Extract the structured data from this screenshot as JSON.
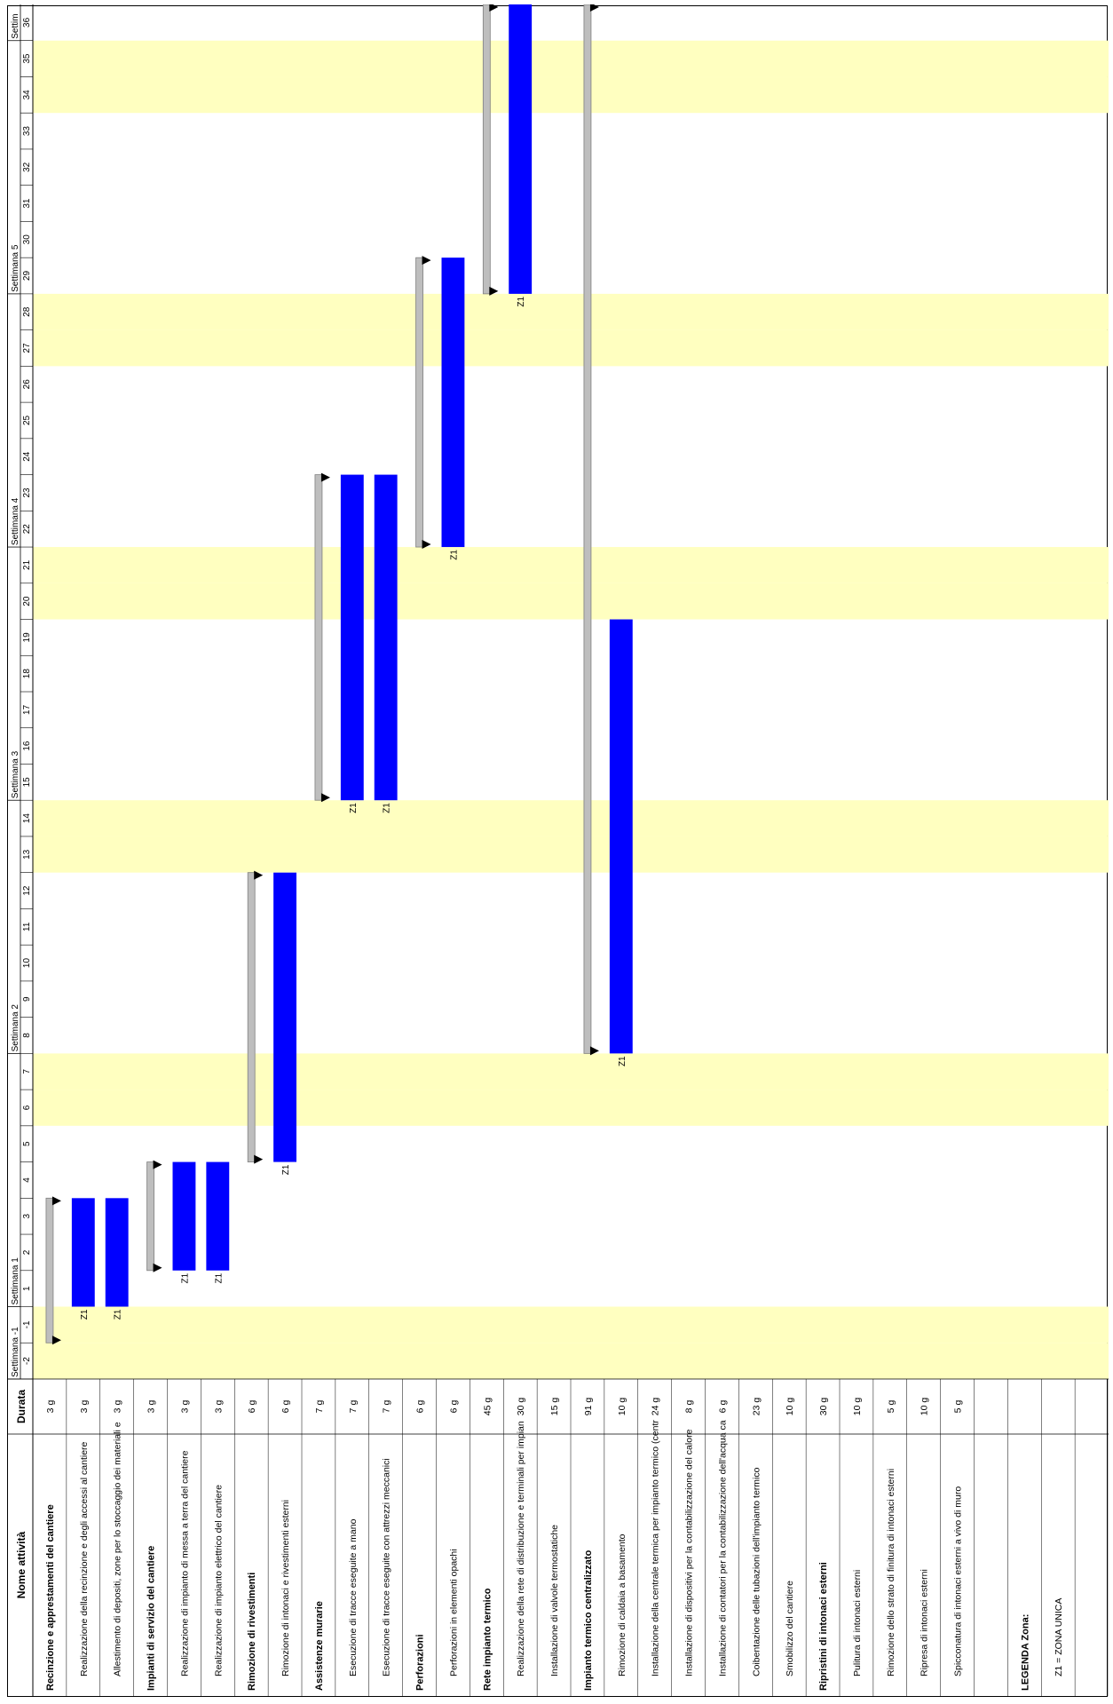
{
  "header": {
    "name_col": "Nome attività",
    "duration_col": "Durata",
    "weeks": [
      {
        "label": "Settimana -1",
        "start_day": -2
      },
      {
        "label": "Settimana 1",
        "start_day": 1
      },
      {
        "label": "Settimana 2",
        "start_day": 8
      },
      {
        "label": "Settimana 3",
        "start_day": 15
      },
      {
        "label": "Settimana 4",
        "start_day": 22
      },
      {
        "label": "Settimana 5",
        "start_day": 29
      },
      {
        "label": "Settim",
        "start_day": 36
      }
    ],
    "days": [
      "-2",
      "-1",
      "1",
      "2",
      "3",
      "4",
      "5",
      "6",
      "7",
      "8",
      "9",
      "10",
      "11",
      "12",
      "13",
      "14",
      "15",
      "16",
      "17",
      "18",
      "19",
      "20",
      "21",
      "22",
      "23",
      "24",
      "25",
      "26",
      "27",
      "28",
      "29",
      "30",
      "31",
      "32",
      "33",
      "34",
      "35",
      "36"
    ]
  },
  "weekend_days": [
    "-2",
    "-1",
    "6",
    "7",
    "13",
    "14",
    "20",
    "21",
    "27",
    "28",
    "34",
    "35"
  ],
  "colors": {
    "task_bar": "#0000ff",
    "summary_bar": "#bebebe",
    "summary_bar_border": "#7f7f7f",
    "weekend": "#ffffc0",
    "grid": "#000000"
  },
  "rows": [
    {
      "name": "Recinzione e apprestamenti del cantiere",
      "duration": "3 g",
      "summary": true,
      "start": "-1",
      "end": "3"
    },
    {
      "name": "Realizzazione della recinzione e degli accessi al cantiere",
      "duration": "3 g",
      "start": "1",
      "end": "3",
      "zone": "Z1"
    },
    {
      "name": "Allestimento di depositi, zone per lo stoccaggio dei materiali e",
      "duration": "3 g",
      "start": "1",
      "end": "3",
      "zone": "Z1"
    },
    {
      "name": "Impianti di servizio del cantiere",
      "duration": "3 g",
      "summary": true,
      "start": "2",
      "end": "4"
    },
    {
      "name": "Realizzazione di impianto di messa a terra del cantiere",
      "duration": "3 g",
      "start": "2",
      "end": "4",
      "zone": "Z1"
    },
    {
      "name": "Realizzazione di impianto elettrico del cantiere",
      "duration": "3 g",
      "start": "2",
      "end": "4",
      "zone": "Z1"
    },
    {
      "name": "Rimozione di rivestimenti",
      "duration": "6 g",
      "summary": true,
      "start": "5",
      "end": "12"
    },
    {
      "name": "Rimozione di intonaci e rivestimenti esterni",
      "duration": "6 g",
      "start": "5",
      "end": "12",
      "zone": "Z1"
    },
    {
      "name": "Assistenze murarie",
      "duration": "7 g",
      "summary": true,
      "start": "15",
      "end": "23"
    },
    {
      "name": "Esecuzione di tracce eseguite a mano",
      "duration": "7 g",
      "start": "15",
      "end": "23",
      "zone": "Z1"
    },
    {
      "name": "Esecuzione di tracce eseguite con attrezzi meccanici",
      "duration": "7 g",
      "start": "15",
      "end": "23",
      "zone": "Z1"
    },
    {
      "name": "Perforazioni",
      "duration": "6 g",
      "summary": true,
      "start": "22",
      "end": "29"
    },
    {
      "name": "Perforazioni in elementi opachi",
      "duration": "6 g",
      "start": "22",
      "end": "29",
      "zone": "Z1"
    },
    {
      "name": "Rete impianto termico",
      "duration": "45 g",
      "summary": true,
      "start": "29",
      "end": "36"
    },
    {
      "name": "Realizzazione della rete di distribuzione e terminali per impian",
      "duration": "30 g",
      "start": "29",
      "end": "36",
      "zone": "Z1"
    },
    {
      "name": "Installazione di valvole termostatiche",
      "duration": "15 g"
    },
    {
      "name": "Impianto termico centralizzato",
      "duration": "91 g",
      "summary": true,
      "start": "8",
      "end": "36"
    },
    {
      "name": "Rimozione di caldaia a basamento",
      "duration": "10 g",
      "start": "8",
      "end": "19",
      "zone": "Z1"
    },
    {
      "name": "Installazione della centrale termica per impianto termico (centr",
      "duration": "24 g"
    },
    {
      "name": "Installazione di dispositivi per la contabilizzazione del calore",
      "duration": "8 g"
    },
    {
      "name": "Installazione di contatori per la contabilizzazione dell'acqua ca",
      "duration": "6 g"
    },
    {
      "name": "Coibentazione delle tubazioni dell'impianto termico",
      "duration": "23 g"
    },
    {
      "name": "Smobilizzo del cantiere",
      "duration": "10 g"
    },
    {
      "name": "Ripristini di intonaci esterni",
      "duration": "30 g",
      "summary": true
    },
    {
      "name": "Pulitura di intonaci esterni",
      "duration": "10 g"
    },
    {
      "name": "Rimozione dello strato di finitura di intonaci esterni",
      "duration": "5 g"
    },
    {
      "name": "Ripresa di intonaci esterni",
      "duration": "10 g"
    },
    {
      "name": "Spicconatura di intonaci esterni a vivo di muro",
      "duration": "5 g"
    },
    {
      "name": "",
      "duration": ""
    },
    {
      "name": "LEGENDA Zona:",
      "duration": "",
      "legend": true
    },
    {
      "name": "Z1 = ZONA UNICA",
      "duration": ""
    },
    {
      "name": "",
      "duration": ""
    }
  ],
  "table_layout_rows": 32
}
